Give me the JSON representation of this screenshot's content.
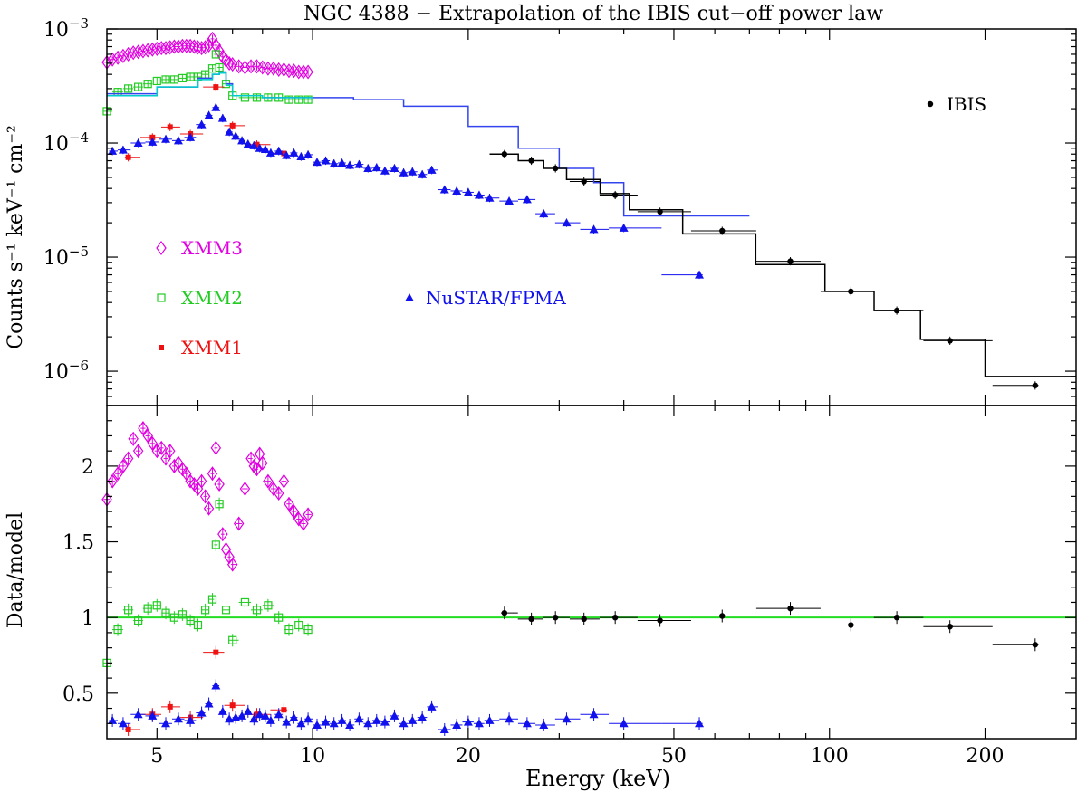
{
  "chart_data": [
    {
      "type": "scatter",
      "panel": "spectrum",
      "title": "NGC 4388 − Extrapolation of the IBIS cut−off power law",
      "xlabel": "Energy (keV)",
      "ylabel": "Counts s⁻¹ keV⁻¹ cm⁻²",
      "xscale": "log",
      "yscale": "log",
      "xlim": [
        4,
        300
      ],
      "ylim": [
        5e-07,
        0.001
      ],
      "y_ticks": [
        {
          "value": 0.001,
          "base": "10",
          "exp": "−3"
        },
        {
          "value": 0.0001,
          "base": "10",
          "exp": "−4"
        },
        {
          "value": 1e-05,
          "base": "10",
          "exp": "−5"
        },
        {
          "value": 1e-06,
          "base": "10",
          "exp": "−6"
        }
      ],
      "legend": [
        {
          "label": "XMM3",
          "color": "#e000e0",
          "marker": "diamond"
        },
        {
          "label": "XMM2",
          "color": "#22cc22",
          "marker": "square"
        },
        {
          "label": "XMM1",
          "color": "#ee1111",
          "marker": "filled-square"
        },
        {
          "label": "NuSTAR/FPMA",
          "color": "#1111ee",
          "marker": "triangle"
        },
        {
          "label": "IBIS",
          "color": "#000000",
          "marker": "circle"
        }
      ],
      "series": [
        {
          "name": "XMM3",
          "color": "#e000e0",
          "marker": "diamond",
          "x": [
            4.0,
            4.1,
            4.2,
            4.3,
            4.4,
            4.5,
            4.6,
            4.7,
            4.8,
            4.9,
            5.0,
            5.1,
            5.2,
            5.3,
            5.4,
            5.5,
            5.6,
            5.7,
            5.8,
            5.9,
            6.0,
            6.1,
            6.2,
            6.3,
            6.4,
            6.5,
            6.6,
            6.7,
            6.8,
            6.9,
            7.0,
            7.2,
            7.4,
            7.6,
            7.8,
            8.0,
            8.2,
            8.4,
            8.6,
            8.8,
            9.0,
            9.2,
            9.4,
            9.6,
            9.8
          ],
          "y": [
            0.00051,
            0.00054,
            0.00056,
            0.00058,
            0.0006,
            0.00062,
            0.00063,
            0.00064,
            0.00065,
            0.00066,
            0.00067,
            0.00068,
            0.00068,
            0.00069,
            0.0007,
            0.0007,
            0.00071,
            0.00071,
            0.00071,
            0.0007,
            0.00069,
            0.00068,
            0.00069,
            0.00072,
            0.00082,
            0.00072,
            0.00064,
            0.00057,
            0.00053,
            0.0005,
            0.00049,
            0.00047,
            0.00046,
            0.00047,
            0.00047,
            0.00046,
            0.00045,
            0.00045,
            0.00044,
            0.00044,
            0.00043,
            0.00043,
            0.00042,
            0.00042,
            0.00042
          ]
        },
        {
          "name": "XMM2",
          "color": "#22cc22",
          "marker": "square",
          "x": [
            4.0,
            4.2,
            4.4,
            4.6,
            4.8,
            5.0,
            5.2,
            5.4,
            5.6,
            5.8,
            6.0,
            6.2,
            6.4,
            6.5,
            6.6,
            6.8,
            7.0,
            7.4,
            7.8,
            8.2,
            8.6,
            9.0,
            9.4,
            9.8
          ],
          "y": [
            0.00019,
            0.00028,
            0.0003,
            0.00031,
            0.00033,
            0.00035,
            0.00036,
            0.00036,
            0.00037,
            0.00038,
            0.00038,
            0.0004,
            0.00045,
            0.0006,
            0.00046,
            0.00033,
            0.00026,
            0.00025,
            0.00025,
            0.00025,
            0.00025,
            0.00024,
            0.00024,
            0.00024
          ]
        },
        {
          "name": "XMM1",
          "color": "#ee1111",
          "marker": "filled-square",
          "x": [
            4.4,
            4.9,
            5.3,
            5.8,
            6.5,
            7.0,
            7.8,
            8.8
          ],
          "y": [
            7.5e-05,
            0.000112,
            0.000138,
            0.00012,
            0.00031,
            0.000142,
            9.7e-05,
            8.1e-05
          ]
        },
        {
          "name": "NuSTAR/FPMA",
          "color": "#1111ee",
          "marker": "triangle",
          "x": [
            4.1,
            4.3,
            4.6,
            4.9,
            5.2,
            5.5,
            5.8,
            6.1,
            6.3,
            6.5,
            6.7,
            6.9,
            7.1,
            7.3,
            7.5,
            7.7,
            7.9,
            8.1,
            8.3,
            8.6,
            8.9,
            9.2,
            9.5,
            9.8,
            10.2,
            10.6,
            11.0,
            11.4,
            11.8,
            12.3,
            12.8,
            13.3,
            13.8,
            14.4,
            15.0,
            15.6,
            16.3,
            17.0,
            18.0,
            19.0,
            20.0,
            21.0,
            22.0,
            24.0,
            26.0,
            28.0,
            31.0,
            35.0,
            40.0,
            56.0
          ],
          "y": [
            8.5e-05,
            8.7e-05,
            0.0001,
            0.000102,
            0.000108,
            0.000105,
            0.000112,
            0.000145,
            0.000175,
            0.000205,
            0.000165,
            0.000125,
            0.000115,
            0.000105,
            9.8e-05,
            9.5e-05,
            9e-05,
            8.8e-05,
            8.2e-05,
            8.5e-05,
            7.8e-05,
            8.2e-05,
            7.6e-05,
            7.9e-05,
            6.8e-05,
            7e-05,
            6.6e-05,
            6.7e-05,
            6.4e-05,
            6.5e-05,
            6e-05,
            6.1e-05,
            5.7e-05,
            6e-05,
            5.5e-05,
            5.6e-05,
            5.3e-05,
            5.8e-05,
            3.9e-05,
            3.8e-05,
            3.7e-05,
            3.5e-05,
            3.3e-05,
            3.1e-05,
            3.2e-05,
            2.4e-05,
            2e-05,
            1.75e-05,
            1.8e-05,
            7e-06
          ]
        },
        {
          "name": "IBIS",
          "color": "#000000",
          "marker": "circle",
          "x": [
            23.5,
            26.5,
            29.5,
            33.5,
            38.5,
            47.0,
            62.0,
            84.0,
            110.0,
            135.0,
            171.0,
            250.0
          ],
          "y": [
            8e-05,
            7e-05,
            6e-05,
            4.6e-05,
            3.5e-05,
            2.5e-05,
            1.7e-05,
            9.2e-06,
            5e-06,
            3.4e-06,
            1.85e-06,
            7.5e-07
          ]
        }
      ],
      "models": [
        {
          "name": "XMM/NuSTAR model (blue)",
          "color": "#3344ee",
          "x": [
            4,
            5,
            6,
            6.4,
            6.6,
            6.8,
            7,
            8,
            10,
            12,
            15,
            20,
            25,
            30,
            35,
            40,
            70
          ],
          "y": [
            0.00027,
            0.00031,
            0.00037,
            0.0004,
            0.00042,
            0.00033,
            0.00026,
            0.00025,
            0.00025,
            0.00024,
            0.00021,
            0.00014,
            9e-05,
            6e-05,
            4.5e-05,
            2.3e-05,
            2.3e-05
          ]
        },
        {
          "name": "XMM2 model (cyan)",
          "color": "#00cccc",
          "x": [
            4,
            5,
            6,
            6.4,
            6.6,
            6.8,
            7,
            8,
            10
          ],
          "y": [
            0.00026,
            0.00031,
            0.00036,
            0.0004,
            0.00041,
            0.00032,
            0.00026,
            0.00025,
            0.00025
          ]
        },
        {
          "name": "IBIS cut-off power law (black)",
          "color": "#000000",
          "x": [
            22,
            25,
            28,
            31,
            36,
            41,
            52,
            72,
            98,
            122,
            150,
            200,
            300
          ],
          "y": [
            8e-05,
            7e-05,
            6e-05,
            4.8e-05,
            3.6e-05,
            2.6e-05,
            1.6e-05,
            8.6e-06,
            5e-06,
            3.4e-06,
            1.9e-06,
            9e-07,
            9e-07
          ]
        }
      ]
    },
    {
      "type": "scatter",
      "panel": "ratio",
      "xlabel": "Energy (keV)",
      "ylabel": "Data/model",
      "xscale": "log",
      "yscale": "linear",
      "xlim": [
        4,
        300
      ],
      "ylim": [
        0.2,
        2.4
      ],
      "x_ticks": [
        5,
        10,
        20,
        50,
        100,
        200
      ],
      "y_ticks": [
        0.5,
        1,
        1.5,
        2
      ],
      "reference_line": {
        "y": 1,
        "color": "#22dd22"
      },
      "series": [
        {
          "name": "XMM3",
          "color": "#e000e0",
          "marker": "diamond",
          "x": [
            4.0,
            4.1,
            4.2,
            4.3,
            4.4,
            4.5,
            4.6,
            4.7,
            4.8,
            4.9,
            5.0,
            5.1,
            5.2,
            5.3,
            5.4,
            5.5,
            5.6,
            5.7,
            5.8,
            5.9,
            6.0,
            6.1,
            6.2,
            6.3,
            6.4,
            6.5,
            6.6,
            6.7,
            6.8,
            6.9,
            7.0,
            7.2,
            7.4,
            7.6,
            7.7,
            7.8,
            7.9,
            8.0,
            8.2,
            8.4,
            8.6,
            8.8,
            9.0,
            9.2,
            9.4,
            9.6,
            9.8
          ],
          "y": [
            1.78,
            1.9,
            1.95,
            2.0,
            2.05,
            2.18,
            2.1,
            2.25,
            2.2,
            2.15,
            2.1,
            2.12,
            2.05,
            2.1,
            2.0,
            2.02,
            1.98,
            1.95,
            1.9,
            1.88,
            1.85,
            1.9,
            1.8,
            1.72,
            1.95,
            2.12,
            1.88,
            1.55,
            1.45,
            1.4,
            1.35,
            1.62,
            1.85,
            2.05,
            2.0,
            1.98,
            2.08,
            2.02,
            1.9,
            1.85,
            1.82,
            1.9,
            1.75,
            1.7,
            1.65,
            1.62,
            1.68
          ]
        },
        {
          "name": "XMM2",
          "color": "#22cc22",
          "marker": "square",
          "x": [
            4.0,
            4.2,
            4.4,
            4.6,
            4.8,
            5.0,
            5.2,
            5.4,
            5.6,
            5.8,
            6.0,
            6.2,
            6.4,
            6.5,
            6.6,
            6.8,
            7.0,
            7.4,
            7.8,
            8.2,
            8.6,
            9.0,
            9.4,
            9.8
          ],
          "y": [
            0.7,
            0.92,
            1.05,
            0.98,
            1.06,
            1.08,
            1.03,
            1.0,
            1.02,
            0.98,
            0.95,
            1.05,
            1.12,
            1.48,
            1.75,
            1.05,
            0.85,
            1.1,
            1.05,
            1.08,
            1.0,
            0.92,
            0.95,
            0.92
          ]
        },
        {
          "name": "XMM1",
          "color": "#ee1111",
          "marker": "filled-square",
          "x": [
            4.4,
            4.9,
            5.3,
            5.8,
            6.5,
            7.0,
            7.8,
            8.8
          ],
          "y": [
            0.26,
            0.36,
            0.41,
            0.34,
            0.77,
            0.42,
            0.36,
            0.39
          ]
        },
        {
          "name": "NuSTAR/FPMA",
          "color": "#1111ee",
          "marker": "triangle",
          "x": [
            4.1,
            4.3,
            4.6,
            4.9,
            5.2,
            5.5,
            5.8,
            6.1,
            6.3,
            6.5,
            6.7,
            6.9,
            7.1,
            7.3,
            7.5,
            7.7,
            7.9,
            8.1,
            8.3,
            8.6,
            8.9,
            9.2,
            9.5,
            9.8,
            10.2,
            10.6,
            11.0,
            11.4,
            11.8,
            12.3,
            12.8,
            13.3,
            13.8,
            14.4,
            15.0,
            15.6,
            16.3,
            17.0,
            18.0,
            19.0,
            20.0,
            21.0,
            22.0,
            24.0,
            26.0,
            28.0,
            31.0,
            35.0,
            40.0,
            56.0
          ],
          "y": [
            0.32,
            0.3,
            0.36,
            0.35,
            0.3,
            0.33,
            0.32,
            0.37,
            0.43,
            0.55,
            0.38,
            0.33,
            0.34,
            0.35,
            0.38,
            0.33,
            0.36,
            0.35,
            0.32,
            0.36,
            0.31,
            0.34,
            0.3,
            0.33,
            0.29,
            0.31,
            0.3,
            0.32,
            0.29,
            0.33,
            0.3,
            0.32,
            0.31,
            0.35,
            0.3,
            0.32,
            0.34,
            0.41,
            0.26,
            0.29,
            0.31,
            0.3,
            0.32,
            0.33,
            0.3,
            0.29,
            0.33,
            0.36,
            0.3,
            0.3
          ]
        },
        {
          "name": "IBIS",
          "color": "#000000",
          "marker": "circle",
          "x": [
            23.5,
            26.5,
            29.5,
            33.5,
            38.5,
            47.0,
            62.0,
            84.0,
            110.0,
            135.0,
            171.0,
            250.0
          ],
          "y": [
            1.03,
            0.99,
            1.0,
            0.99,
            1.0,
            0.98,
            1.01,
            1.06,
            0.95,
            1.0,
            0.94,
            0.82
          ]
        }
      ]
    }
  ]
}
